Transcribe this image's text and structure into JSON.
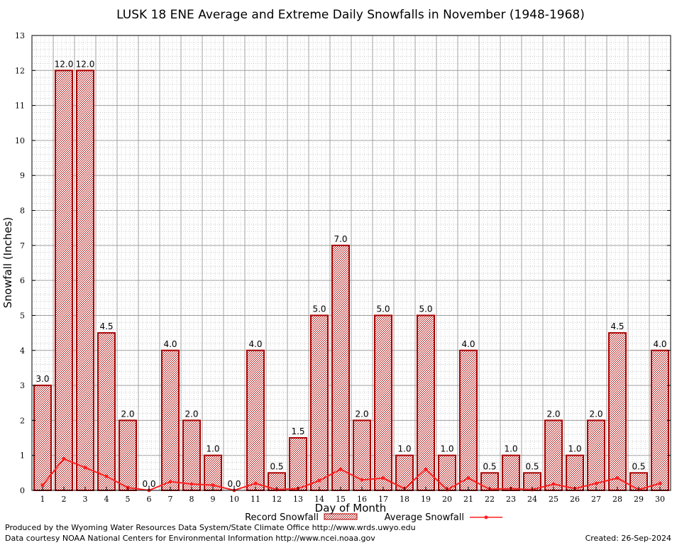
{
  "chart_data": {
    "type": "bar",
    "title": "LUSK 18 ENE Average and Extreme Daily Snowfalls in November (1948-1968)",
    "xlabel": "Day of Month",
    "ylabel": "Snowfall (Inches)",
    "ylim": [
      0,
      13
    ],
    "yticks": [
      0,
      1,
      2,
      3,
      4,
      5,
      6,
      7,
      8,
      9,
      10,
      11,
      12,
      13
    ],
    "grid": true,
    "legend_position": "bottom-center",
    "categories": [
      "1",
      "2",
      "3",
      "4",
      "5",
      "6",
      "7",
      "8",
      "9",
      "10",
      "11",
      "12",
      "13",
      "14",
      "15",
      "16",
      "17",
      "18",
      "19",
      "20",
      "21",
      "22",
      "23",
      "24",
      "25",
      "26",
      "27",
      "28",
      "29",
      "30"
    ],
    "series": [
      {
        "name": "Record Snowfall",
        "kind": "bar",
        "color": "#aa0000",
        "values": [
          3.0,
          12.0,
          12.0,
          4.5,
          2.0,
          0.0,
          4.0,
          2.0,
          1.0,
          0.0,
          4.0,
          0.5,
          1.5,
          5.0,
          7.0,
          2.0,
          5.0,
          1.0,
          5.0,
          1.0,
          4.0,
          0.5,
          1.0,
          0.5,
          2.0,
          1.0,
          2.0,
          4.5,
          0.5,
          4.0
        ],
        "labels": [
          "3.0",
          "12.0",
          "12.0",
          "4.5",
          "2.0",
          "0.0",
          "4.0",
          "2.0",
          "1.0",
          "0.0",
          "4.0",
          "0.5",
          "1.5",
          "5.0",
          "7.0",
          "2.0",
          "5.0",
          "1.0",
          "5.0",
          "1.0",
          "4.0",
          "0.5",
          "1.0",
          "0.5",
          "2.0",
          "1.0",
          "2.0",
          "4.5",
          "0.5",
          "4.0"
        ]
      },
      {
        "name": "Average Snowfall",
        "kind": "line",
        "color": "#ff2020",
        "values": [
          0.15,
          0.9,
          0.65,
          0.4,
          0.08,
          0.0,
          0.25,
          0.18,
          0.15,
          0.0,
          0.2,
          0.02,
          0.05,
          0.28,
          0.6,
          0.3,
          0.35,
          0.05,
          0.6,
          0.02,
          0.35,
          0.03,
          0.05,
          0.02,
          0.18,
          0.05,
          0.2,
          0.35,
          0.02,
          0.2
        ]
      }
    ]
  },
  "footer": {
    "produced_by": "Produced by the Wyoming Water Resources Data System/State Climate Office http://www.wrds.uwyo.edu",
    "data_courtesy": "Data courtesy NOAA National Centers for Environmental Information http://www.ncei.noaa.gov",
    "created": "Created:  26-Sep-2024"
  }
}
